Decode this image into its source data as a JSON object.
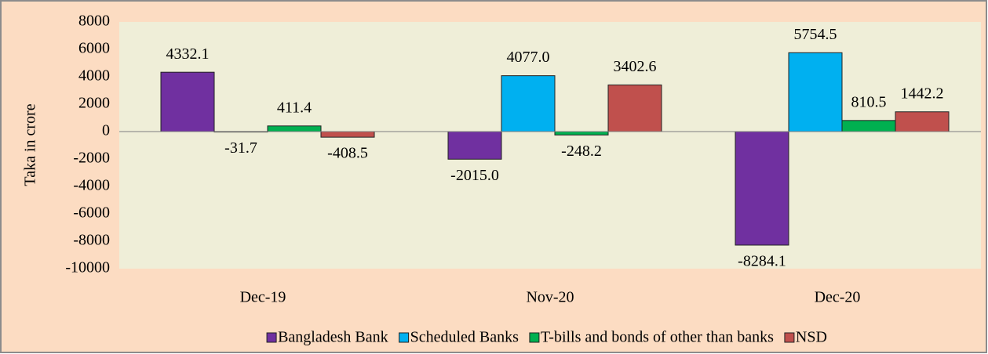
{
  "chart_data": {
    "type": "bar",
    "categories": [
      "Dec-19",
      "Nov-20",
      "Dec-20"
    ],
    "y_label": "Taka in crore",
    "series": [
      {
        "name": "Bangladesh Bank",
        "color": "#7030a0",
        "values": [
          4332.1,
          -2015.0,
          -8284.1
        ],
        "value_labels": [
          "4332.1",
          "-2015.0",
          "-8284.1"
        ]
      },
      {
        "name": "Scheduled Banks",
        "color": "#00b0f0",
        "values": [
          -31.7,
          4077.0,
          5754.5
        ],
        "value_labels": [
          "-31.7",
          "4077.0",
          "5754.5"
        ]
      },
      {
        "name": "T-bills and bonds of other than banks",
        "color": "#00b050",
        "values": [
          411.4,
          -248.2,
          810.5
        ],
        "value_labels": [
          "411.4",
          "-248.2",
          "810.5"
        ]
      },
      {
        "name": "NSD",
        "color": "#c0504d",
        "values": [
          -408.5,
          3402.6,
          1442.2
        ],
        "value_labels": [
          "-408.5",
          "3402.6",
          "1442.2"
        ]
      }
    ],
    "ylim": [
      -10000,
      8000
    ],
    "yticks": [
      -10000,
      -8000,
      -6000,
      -4000,
      -2000,
      0,
      2000,
      4000,
      6000,
      8000
    ],
    "grid": false,
    "legend": "bottom"
  }
}
